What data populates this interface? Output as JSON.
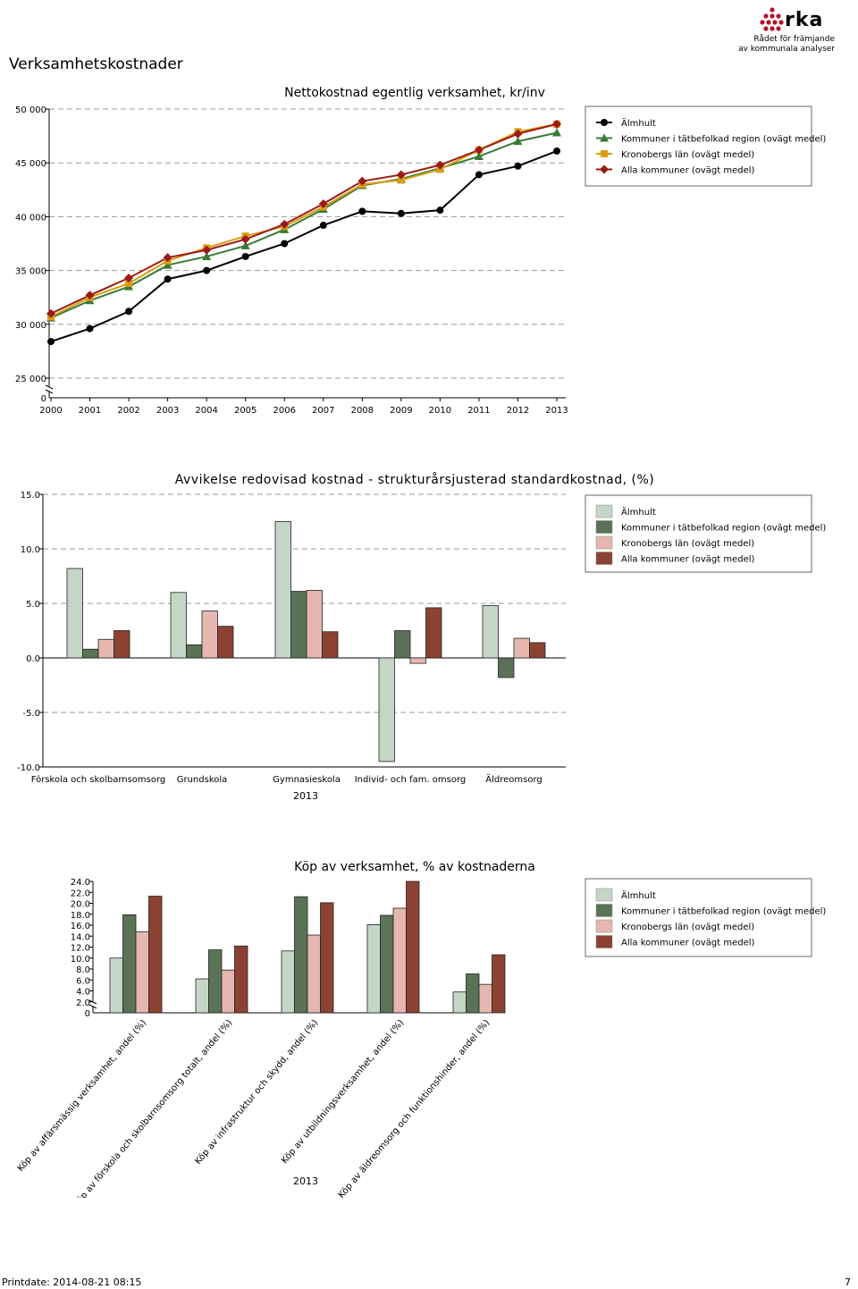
{
  "page": {
    "title": "Verksamhetskostnader",
    "footer_date": "Printdate: 2014-08-21 08:15",
    "page_number": "7"
  },
  "logo": {
    "text": "rka",
    "tagline1": "Rådet för främjande",
    "tagline2": "av kommunala analyser",
    "brand_color": "#b4122a"
  },
  "chart_data": [
    {
      "type": "line",
      "title": "Nettokostnad egentlig verksamhet, kr/inv",
      "x": [
        2000,
        2001,
        2002,
        2003,
        2004,
        2005,
        2006,
        2007,
        2008,
        2009,
        2010,
        2011,
        2012,
        2013
      ],
      "ylim": [
        25000,
        50000
      ],
      "yticks": [
        "0",
        "25 000",
        "30 000",
        "35 000",
        "40 000",
        "45 000",
        "50 000"
      ],
      "axis_break": true,
      "grid": "dashed-horizontal",
      "legend_position": "top-right",
      "series": [
        {
          "name": "Älmhult",
          "color": "#000000",
          "marker": "circle",
          "values": [
            28400,
            29600,
            31200,
            34200,
            35000,
            36300,
            37500,
            39200,
            40500,
            40300,
            40600,
            43900,
            44700,
            46100
          ]
        },
        {
          "name": "Kommuner i tätbefolkad region (ovägt medel)",
          "color": "#3a7a35",
          "marker": "triangle",
          "values": [
            30600,
            32200,
            33500,
            35500,
            36300,
            37300,
            38800,
            40700,
            42900,
            43500,
            44500,
            45600,
            47000,
            47800
          ]
        },
        {
          "name": "Kronobergs län (ovägt medel)",
          "color": "#d79e13",
          "marker": "square",
          "values": [
            30700,
            32500,
            33800,
            35900,
            37100,
            38200,
            39100,
            40900,
            43000,
            43400,
            44400,
            46200,
            47900,
            48600
          ]
        },
        {
          "name": "Alla kommuner (ovägt medel)",
          "color": "#9b1a17",
          "marker": "diamond",
          "values": [
            31000,
            32700,
            34300,
            36200,
            36900,
            37900,
            39300,
            41200,
            43300,
            43900,
            44800,
            46200,
            47700,
            48600
          ]
        }
      ]
    },
    {
      "type": "bar",
      "title": "Avvikelse redovisad kostnad - strukturårsjusterad standardkostnad, (%)",
      "xlabel": "2013",
      "categories": [
        "Förskola och skolbarnsomsorg",
        "Grundskola",
        "Gymnasieskola",
        "Individ- och fam. omsorg",
        "Äldreomsorg"
      ],
      "ylim": [
        -10,
        15
      ],
      "yticks": [
        "-10.0",
        "-5.0",
        "0.0",
        "5.0",
        "10.0",
        "15.0"
      ],
      "grid": "dashed-horizontal",
      "legend_position": "top-right",
      "series": [
        {
          "name": "Älmhult",
          "color": "#c5d6c7",
          "values": [
            8.2,
            6.0,
            12.5,
            -9.5,
            4.8
          ]
        },
        {
          "name": "Kommuner i tätbefolkad region (ovägt medel)",
          "color": "#5a7357",
          "values": [
            0.8,
            1.2,
            6.1,
            2.5,
            -1.8
          ]
        },
        {
          "name": "Kronobergs län (ovägt medel)",
          "color": "#e5b7b0",
          "values": [
            1.7,
            4.3,
            6.2,
            -0.5,
            1.8
          ]
        },
        {
          "name": "Alla kommuner (ovägt medel)",
          "color": "#8c4233",
          "values": [
            2.5,
            2.9,
            2.4,
            4.6,
            1.4
          ]
        }
      ]
    },
    {
      "type": "bar",
      "title": "Köp av verksamhet, % av kostnaderna",
      "xlabel": "2013",
      "categories": [
        "Köp av affärsmässig verksamhet, andel (%)",
        "Köp av förskola och skolbarnsomsorg totalt, andel (%)",
        "Köp av infrastruktur och skydd, andel (%)",
        "Köp av utbildningsverksamhet, andel (%)",
        "Köp av äldreomsorg och funktionshinder, andel (%)"
      ],
      "ylim": [
        0,
        24
      ],
      "yticks": [
        "0",
        "2.0",
        "4.0",
        "6.0",
        "8.0",
        "10.0",
        "12.0",
        "14.0",
        "16.0",
        "18.0",
        "20.0",
        "22.0",
        "24.0"
      ],
      "axis_break": true,
      "legend_position": "top-right",
      "series": [
        {
          "name": "Älmhult",
          "color": "#c5d6c7",
          "values": [
            10.0,
            6.2,
            11.3,
            16.1,
            3.8
          ]
        },
        {
          "name": "Kommuner i tätbefolkad region (ovägt medel)",
          "color": "#5a7357",
          "values": [
            17.9,
            11.5,
            21.2,
            17.8,
            7.1
          ]
        },
        {
          "name": "Kronobergs län (ovägt medel)",
          "color": "#e5b7b0",
          "values": [
            14.8,
            7.8,
            14.2,
            19.1,
            5.2
          ]
        },
        {
          "name": "Alla kommuner (ovägt medel)",
          "color": "#8c4233",
          "values": [
            21.3,
            12.2,
            20.1,
            24.0,
            10.6
          ]
        }
      ]
    }
  ]
}
